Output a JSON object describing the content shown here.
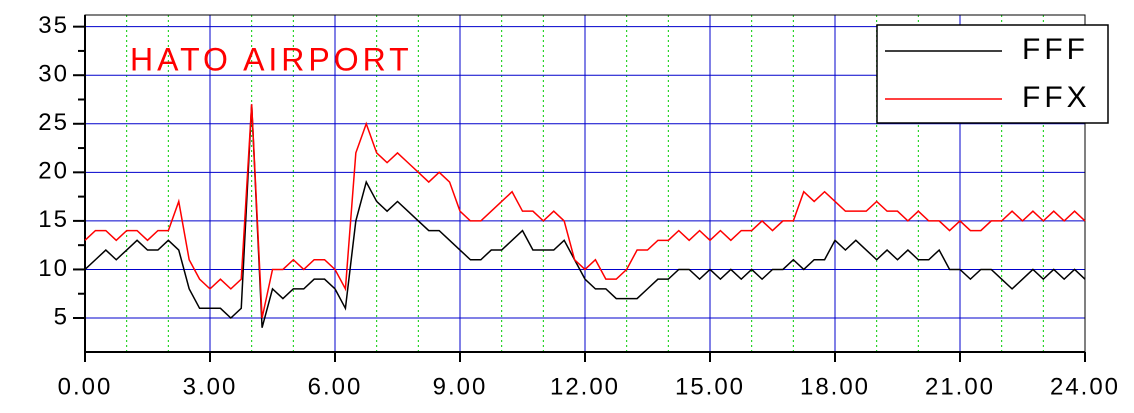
{
  "chart_data": {
    "type": "line",
    "title": "HATO AIRPORT",
    "x": [
      0,
      0.25,
      0.5,
      0.75,
      1,
      1.25,
      1.5,
      1.75,
      2,
      2.25,
      2.5,
      2.75,
      3,
      3.25,
      3.5,
      3.75,
      4,
      4.25,
      4.5,
      4.75,
      5,
      5.25,
      5.5,
      5.75,
      6,
      6.25,
      6.5,
      6.75,
      7,
      7.25,
      7.5,
      7.75,
      8,
      8.25,
      8.5,
      8.75,
      9,
      9.25,
      9.5,
      9.75,
      10,
      10.25,
      10.5,
      10.75,
      11,
      11.25,
      11.5,
      11.75,
      12,
      12.25,
      12.5,
      12.75,
      13,
      13.25,
      13.5,
      13.75,
      14,
      14.25,
      14.5,
      14.75,
      15,
      15.25,
      15.5,
      15.75,
      16,
      16.25,
      16.5,
      16.75,
      17,
      17.25,
      17.5,
      17.75,
      18,
      18.25,
      18.5,
      18.75,
      19,
      19.25,
      19.5,
      19.75,
      20,
      20.25,
      20.5,
      20.75,
      21,
      21.25,
      21.5,
      21.75,
      22,
      22.25,
      22.5,
      22.75,
      23,
      23.25,
      23.5,
      23.75,
      24
    ],
    "series": [
      {
        "name": "FFF",
        "color": "#000000",
        "values": [
          10,
          11,
          12,
          11,
          12,
          13,
          12,
          12,
          13,
          12,
          8,
          6,
          6,
          6,
          5,
          6,
          27,
          4,
          8,
          7,
          8,
          8,
          9,
          9,
          8,
          6,
          15,
          19,
          17,
          16,
          17,
          16,
          15,
          14,
          14,
          13,
          12,
          11,
          11,
          12,
          12,
          13,
          14,
          12,
          12,
          12,
          13,
          11,
          9,
          8,
          8,
          7,
          7,
          7,
          8,
          9,
          9,
          10,
          10,
          9,
          10,
          9,
          10,
          9,
          10,
          9,
          10,
          10,
          11,
          10,
          11,
          11,
          13,
          12,
          13,
          12,
          11,
          12,
          11,
          12,
          11,
          11,
          12,
          10,
          10,
          9,
          10,
          10,
          9,
          8,
          9,
          10,
          9,
          10,
          9,
          10,
          9
        ]
      },
      {
        "name": "FFX",
        "color": "#ff0000",
        "values": [
          13,
          14,
          14,
          13,
          14,
          14,
          13,
          14,
          14,
          17,
          11,
          9,
          8,
          9,
          8,
          9,
          27,
          5,
          10,
          10,
          11,
          10,
          11,
          11,
          10,
          8,
          22,
          25,
          22,
          21,
          22,
          21,
          20,
          19,
          20,
          19,
          16,
          15,
          15,
          16,
          17,
          18,
          16,
          16,
          15,
          16,
          15,
          11,
          10,
          11,
          9,
          9,
          10,
          12,
          12,
          13,
          13,
          14,
          13,
          14,
          13,
          14,
          13,
          14,
          14,
          15,
          14,
          15,
          15,
          18,
          17,
          18,
          17,
          16,
          16,
          16,
          17,
          16,
          16,
          15,
          16,
          15,
          15,
          14,
          15,
          14,
          14,
          15,
          15,
          16,
          15,
          16,
          15,
          16,
          15,
          16,
          15
        ]
      }
    ],
    "xlim": [
      0,
      24
    ],
    "xticks": [
      {
        "value": 0,
        "label": "0.00"
      },
      {
        "value": 3,
        "label": "3.00"
      },
      {
        "value": 6,
        "label": "6.00"
      },
      {
        "value": 9,
        "label": "9.00"
      },
      {
        "value": 12,
        "label": "12.00"
      },
      {
        "value": 15,
        "label": "15.00"
      },
      {
        "value": 18,
        "label": "18.00"
      },
      {
        "value": 21,
        "label": "21.00"
      },
      {
        "value": 24,
        "label": "24.00"
      }
    ],
    "ylim": [
      1.5,
      36.2
    ],
    "yticks": [
      5,
      10,
      15,
      20,
      25,
      30,
      35
    ],
    "grid": true,
    "legend": "upper right"
  }
}
